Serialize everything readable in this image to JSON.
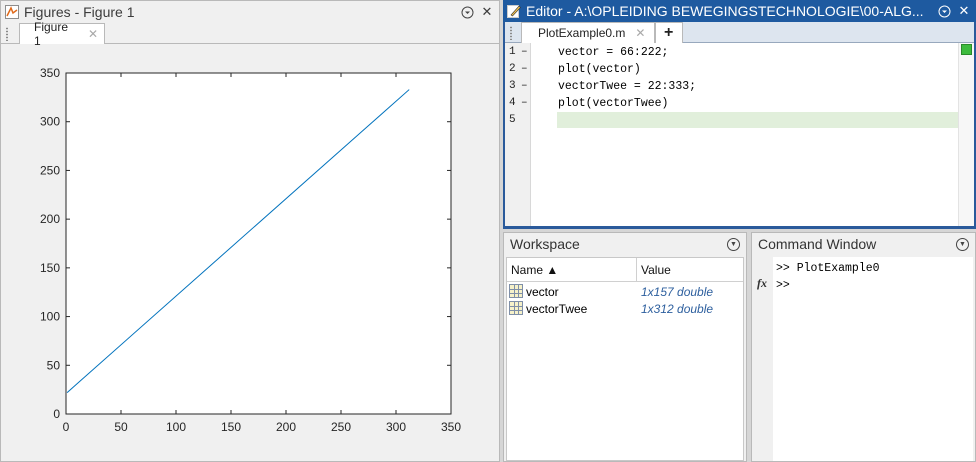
{
  "figures": {
    "title": "Figures - Figure 1",
    "tab_label": "Figure 1",
    "close_glyph": "✕",
    "menu_glyph": "⊙"
  },
  "chart_data": {
    "type": "line",
    "title": "",
    "xlabel": "",
    "ylabel": "",
    "xlim": [
      0,
      350
    ],
    "ylim": [
      0,
      350
    ],
    "xticks": [
      0,
      50,
      100,
      150,
      200,
      250,
      300,
      350
    ],
    "yticks": [
      0,
      50,
      100,
      150,
      200,
      250,
      300,
      350
    ],
    "grid": false,
    "series": [
      {
        "x": [
          1,
          312
        ],
        "y": [
          22,
          333
        ],
        "color": "#0072bd"
      }
    ]
  },
  "editor": {
    "title": "Editor - A:\\OPLEIDING BEWEGINGSTECHNOLOGIE\\00-ALG...",
    "tab_label": "PlotExample0.m",
    "add_tab": "+",
    "lines": [
      {
        "num": "1",
        "mark": "–",
        "text": "vector = 66:222;"
      },
      {
        "num": "2",
        "mark": "–",
        "text": "plot(vector)"
      },
      {
        "num": "3",
        "mark": "–",
        "text": "vectorTwee = 22:333;"
      },
      {
        "num": "4",
        "mark": "–",
        "text": "plot(vectorTwee)"
      },
      {
        "num": "5",
        "mark": "",
        "text": ""
      }
    ]
  },
  "workspace": {
    "title": "Workspace",
    "col_name": "Name ▲",
    "col_value": "Value",
    "vars": [
      {
        "name": "vector",
        "value": "1x157 double"
      },
      {
        "name": "vectorTwee",
        "value": "1x312 double"
      }
    ]
  },
  "command_window": {
    "title": "Command Window",
    "fx": "fx",
    "lines": [
      ">> PlotExample0",
      ">>"
    ]
  },
  "colors": {
    "editor_titlebar": "#1e5aa0",
    "plot_line": "#0072bd",
    "current_line": "#e1efdb"
  }
}
